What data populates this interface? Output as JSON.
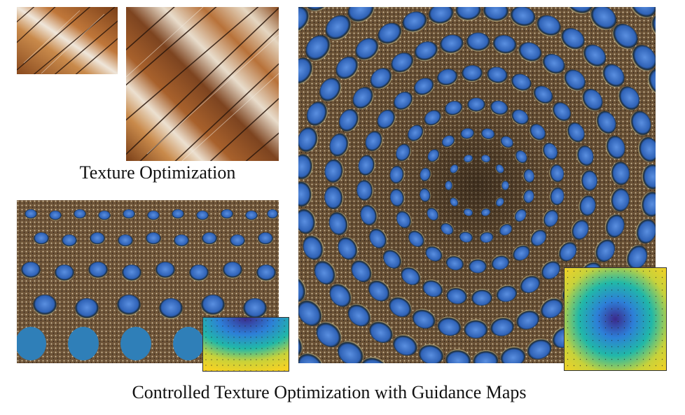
{
  "captions": {
    "texture_optimization": "Texture Optimization",
    "controlled_texture_optimization": "Controlled Texture Optimization with Guidance Maps"
  },
  "figure_images": [
    {
      "name": "wood-texture-exemplar",
      "description": "small wood bark texture sample"
    },
    {
      "name": "wood-texture-synthesized",
      "description": "larger synthesized wood texture"
    },
    {
      "name": "peacock-feather-exemplar",
      "description": "peacock feather texture sample"
    },
    {
      "name": "peacock-feather-synthesized",
      "description": "radially arranged synthesized feather texture"
    }
  ],
  "guidance_maps": [
    {
      "name": "guidance-map-exemplar",
      "colors": [
        "#3b2a8c",
        "#2d7fd8",
        "#21b8a8",
        "#c8d23a",
        "#f6d224"
      ]
    },
    {
      "name": "guidance-map-target",
      "colors": [
        "#3b2a8c",
        "#2d7fd8",
        "#21b8a8",
        "#c8d23a",
        "#f6d224"
      ]
    }
  ],
  "colors": {
    "wood_light": "#e9dcc8",
    "wood_mid": "#b06b2c",
    "wood_dark": "#3a1f10",
    "feather_blue": "#3f78c9",
    "feather_brown": "#7a5d3e"
  }
}
